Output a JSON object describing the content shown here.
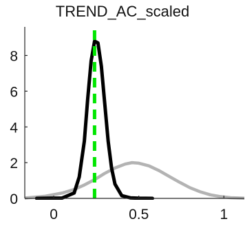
{
  "chart_data": {
    "type": "line",
    "title": "TREND_AC_scaled",
    "xlabel": "",
    "ylabel": "",
    "xlim": [
      -0.17,
      1.12
    ],
    "ylim": [
      0,
      9.6
    ],
    "xticks": [
      0,
      0.5,
      1
    ],
    "xtick_labels": [
      "0",
      "0.5",
      "1"
    ],
    "yticks": [
      0,
      2,
      4,
      6,
      8
    ],
    "ytick_labels": [
      "0",
      "2",
      "4",
      "6",
      "8"
    ],
    "grid": false,
    "series": [
      {
        "style": "solid",
        "color": "#b3b3b3",
        "x": [
          -0.17,
          -0.05,
          0.05,
          0.12,
          0.18,
          0.24,
          0.3,
          0.36,
          0.42,
          0.46,
          0.5,
          0.56,
          0.62,
          0.68,
          0.74,
          0.8,
          0.86,
          0.92,
          0.98,
          1.04,
          1.12
        ],
        "y": [
          0.02,
          0.12,
          0.3,
          0.5,
          0.75,
          1.05,
          1.4,
          1.7,
          1.92,
          2.0,
          1.97,
          1.82,
          1.55,
          1.22,
          0.9,
          0.6,
          0.37,
          0.2,
          0.1,
          0.04,
          0.01
        ]
      },
      {
        "style": "solid",
        "color": "#000000",
        "x": [
          -0.1,
          0.05,
          0.12,
          0.15,
          0.18,
          0.2,
          0.22,
          0.24,
          0.26,
          0.28,
          0.3,
          0.32,
          0.34,
          0.36,
          0.4,
          0.45,
          0.5,
          0.58
        ],
        "y": [
          0,
          0.02,
          0.3,
          1.2,
          3.2,
          5.6,
          7.7,
          8.8,
          8.7,
          7.4,
          5.3,
          3.2,
          1.7,
          0.8,
          0.15,
          0.03,
          0.01,
          0
        ]
      },
      {
        "style": "dashed",
        "color": "#00e600",
        "x": [
          0.24,
          0.24
        ],
        "y": [
          0,
          9.6
        ]
      }
    ]
  }
}
